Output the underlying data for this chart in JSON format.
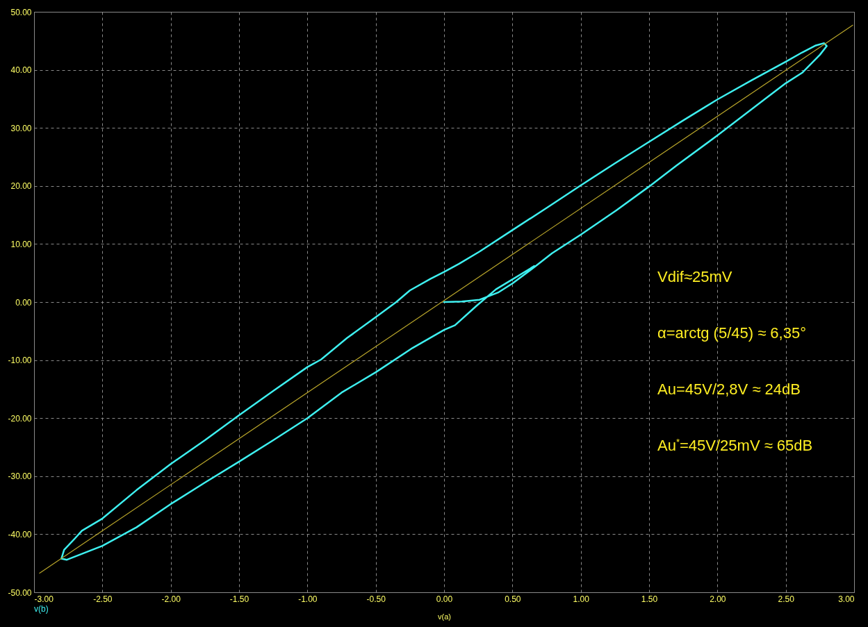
{
  "chart_data": {
    "type": "line",
    "xlabel": "v(a)",
    "xlim": [
      -3,
      3
    ],
    "ylim": [
      -50,
      50
    ],
    "xticks": [
      {
        "value": -3,
        "label": "-3.00"
      },
      {
        "value": -2.5,
        "label": "-2.50"
      },
      {
        "value": -2,
        "label": "-2.00"
      },
      {
        "value": -1.5,
        "label": "-1.50"
      },
      {
        "value": -1,
        "label": "-1.00"
      },
      {
        "value": -0.5,
        "label": "-0.50"
      },
      {
        "value": 0,
        "label": "0.00"
      },
      {
        "value": 0.5,
        "label": "0.50"
      },
      {
        "value": 1,
        "label": "1.00"
      },
      {
        "value": 1.5,
        "label": "1.50"
      },
      {
        "value": 2,
        "label": "2.00"
      },
      {
        "value": 2.5,
        "label": "2.50"
      },
      {
        "value": 3,
        "label": "3.00"
      }
    ],
    "yticks": [
      {
        "value": -50,
        "label": "-50.00"
      },
      {
        "value": -40,
        "label": "-40.00"
      },
      {
        "value": -30,
        "label": "-30.00"
      },
      {
        "value": -20,
        "label": "-20.00"
      },
      {
        "value": -10,
        "label": "-10.00"
      },
      {
        "value": 0,
        "label": "0.00"
      },
      {
        "value": 10,
        "label": "10.00"
      },
      {
        "value": 20,
        "label": "20.00"
      },
      {
        "value": 30,
        "label": "30.00"
      },
      {
        "value": 40,
        "label": "40.00"
      },
      {
        "value": 50,
        "label": "50.00"
      }
    ],
    "grid": true,
    "legend": "bottom left",
    "series": [
      {
        "name": "v(b)",
        "color": "#3ef0f0",
        "x": [
          0,
          0.13,
          0.26,
          0.4,
          0.5,
          0.66,
          0.79,
          1,
          1.26,
          1.5,
          1.7,
          2,
          2.36,
          2.5,
          2.62,
          2.75,
          2.8,
          2.78,
          2.72,
          2.62,
          2.5,
          2.25,
          2,
          1.75,
          1.5,
          1.25,
          1,
          0.75,
          0.5,
          0.26,
          0.11,
          0,
          -0.1,
          -0.25,
          -0.35,
          -0.5,
          -0.71,
          -0.9,
          -1,
          -1.25,
          -1.5,
          -1.75,
          -2,
          -2.25,
          -2.5,
          -2.65,
          -2.7,
          -2.78,
          -2.8,
          -2.76,
          -2.5,
          -2.25,
          -2,
          -1.75,
          -1.5,
          -1.25,
          -1,
          -0.75,
          -0.5,
          -0.23,
          0,
          0.08,
          0.24,
          0.38,
          0.5,
          0.66
        ],
        "values": [
          0,
          0.1,
          0.4,
          1.7,
          3.2,
          6,
          8.4,
          11.6,
          15.8,
          19.9,
          23.5,
          28.7,
          35.2,
          37.7,
          39.5,
          42.6,
          44.1,
          44.6,
          44.2,
          43,
          41.4,
          38.2,
          34.9,
          31.3,
          27.6,
          23.9,
          20.1,
          16.2,
          12.4,
          8.7,
          6.6,
          5.2,
          4,
          2,
          0,
          -2.6,
          -6.2,
          -9.9,
          -11.2,
          -15.3,
          -19.5,
          -23.8,
          -27.9,
          -32.4,
          -37.3,
          -39.4,
          -40.7,
          -42.7,
          -44.2,
          -44.4,
          -42,
          -38.8,
          -34.8,
          -31.1,
          -27.5,
          -23.8,
          -20,
          -15.6,
          -12.1,
          -7.9,
          -4.8,
          -4,
          -0.6,
          2.2,
          3.9,
          6.2
        ]
      },
      {
        "color": "#b8a52a",
        "x": [
          -2.96,
          2.99
        ],
        "values": [
          -46.7,
          47.7
        ]
      }
    ],
    "annotations": [
      "Vdif≈25mV",
      "α=arctg (5/45) ≈ 6,35°",
      "Au=45V/2,8V ≈ 24dB",
      "Au$^{*}$=45V/25mV ≈ 65dB"
    ]
  }
}
